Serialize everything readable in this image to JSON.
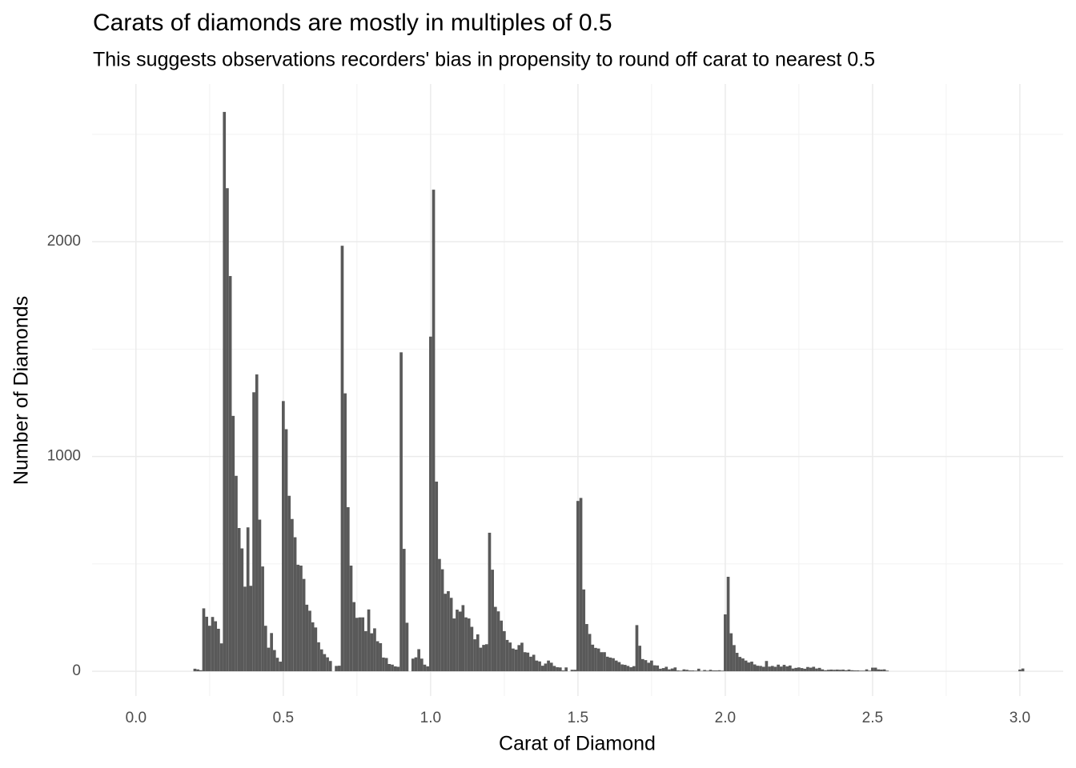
{
  "chart_data": {
    "type": "histogram",
    "title": "Carats of diamonds are mostly in multiples of 0.5",
    "subtitle": "This suggests observations recorders' bias in propensity to round off carat to nearest 0.5",
    "x_label": "Carat of Diamond",
    "y_label": "Number of Diamonds",
    "color": "#595959",
    "grid": true,
    "xlim": [
      -0.149,
      3.147
    ],
    "ylim": [
      -115,
      2734
    ],
    "xticks": [
      {
        "value": 0,
        "label": "0.0"
      },
      0.5,
      {
        "value": 1,
        "label": "1.0"
      },
      1.5,
      {
        "value": 2,
        "label": "2.0"
      },
      2.5,
      {
        "value": 3,
        "label": "3.0"
      }
    ],
    "xminor_ticks": [
      0.25,
      0.75,
      1.25,
      1.75,
      2.25,
      2.75
    ],
    "yticks": [
      0,
      1000,
      2000
    ],
    "yminor_ticks": [
      500,
      1500,
      2500
    ],
    "bins": [
      0.195,
      0.205,
      0.215,
      0.225,
      0.235,
      0.245,
      0.255,
      0.265,
      0.275,
      0.285,
      0.295,
      0.305,
      0.315,
      0.325,
      0.335,
      0.345,
      0.355,
      0.365,
      0.375,
      0.385,
      0.395,
      0.405,
      0.415,
      0.425,
      0.435,
      0.445,
      0.455,
      0.465,
      0.475,
      0.485,
      0.495,
      0.505,
      0.515,
      0.525,
      0.535,
      0.545,
      0.555,
      0.565,
      0.575,
      0.585,
      0.595,
      0.605,
      0.615,
      0.625,
      0.635,
      0.645,
      0.655,
      0.665,
      0.675,
      0.685,
      0.695,
      0.705,
      0.715,
      0.725,
      0.735,
      0.745,
      0.755,
      0.765,
      0.775,
      0.785,
      0.795,
      0.805,
      0.815,
      0.825,
      0.835,
      0.845,
      0.855,
      0.865,
      0.875,
      0.885,
      0.895,
      0.905,
      0.915,
      0.925,
      0.935,
      0.945,
      0.955,
      0.965,
      0.975,
      0.985,
      0.995,
      1.005,
      1.015,
      1.025,
      1.035,
      1.045,
      1.055,
      1.065,
      1.075,
      1.085,
      1.095,
      1.105,
      1.115,
      1.125,
      1.135,
      1.145,
      1.155,
      1.165,
      1.175,
      1.185,
      1.195,
      1.205,
      1.215,
      1.225,
      1.235,
      1.245,
      1.255,
      1.265,
      1.275,
      1.285,
      1.295,
      1.305,
      1.315,
      1.325,
      1.335,
      1.345,
      1.355,
      1.365,
      1.375,
      1.385,
      1.395,
      1.405,
      1.415,
      1.425,
      1.435,
      1.445,
      1.455,
      1.465,
      1.475,
      1.485,
      1.495,
      1.505,
      1.515,
      1.525,
      1.535,
      1.545,
      1.555,
      1.565,
      1.575,
      1.585,
      1.595,
      1.605,
      1.615,
      1.625,
      1.635,
      1.645,
      1.655,
      1.665,
      1.675,
      1.685,
      1.695,
      1.705,
      1.715,
      1.725,
      1.735,
      1.745,
      1.755,
      1.765,
      1.775,
      1.785,
      1.795,
      1.805,
      1.815,
      1.825,
      1.835,
      1.845,
      1.855,
      1.865,
      1.875,
      1.885,
      1.895,
      1.905,
      1.915,
      1.925,
      1.935,
      1.945,
      1.955,
      1.965,
      1.975,
      1.985,
      1.995,
      2.005,
      2.015,
      2.025,
      2.035,
      2.045,
      2.055,
      2.065,
      2.075,
      2.085,
      2.095,
      2.105,
      2.115,
      2.125,
      2.135,
      2.145,
      2.155,
      2.165,
      2.175,
      2.185,
      2.195,
      2.205,
      2.215,
      2.225,
      2.235,
      2.245,
      2.255,
      2.265,
      2.275,
      2.285,
      2.295,
      2.305,
      2.315,
      2.325,
      2.335,
      2.345,
      2.355,
      2.365,
      2.375,
      2.385,
      2.395,
      2.405,
      2.415,
      2.425,
      2.435,
      2.445,
      2.455,
      2.465,
      2.475,
      2.485,
      2.495,
      2.505,
      2.515,
      2.525,
      2.535,
      2.545,
      2.555,
      2.565,
      2.575,
      2.585,
      2.595,
      2.605,
      2.615,
      2.625,
      2.635,
      2.645,
      2.655,
      2.665,
      2.675,
      2.685,
      2.695,
      2.705,
      2.715,
      2.725,
      2.735,
      2.745,
      2.755,
      2.765,
      2.775,
      2.785,
      2.795,
      2.805,
      2.815,
      2.825,
      2.835,
      2.845,
      2.855,
      2.865,
      2.875,
      2.885,
      2.895,
      2.905,
      2.915,
      2.925,
      2.935,
      2.945,
      2.955,
      2.965,
      2.975,
      2.985,
      2.995,
      3.005,
      3.015
    ],
    "values": [
      12,
      9,
      5,
      293,
      254,
      212,
      253,
      233,
      198,
      130,
      2604,
      2249,
      1840,
      1189,
      910,
      667,
      572,
      394,
      670,
      398,
      1299,
      1382,
      706,
      488,
      212,
      110,
      178,
      99,
      63,
      45,
      1258,
      1127,
      817,
      709,
      624,
      496,
      492,
      430,
      310,
      282,
      228,
      204,
      135,
      102,
      80,
      65,
      48,
      0,
      25,
      26,
      1981,
      1294,
      764,
      492,
      322,
      249,
      251,
      251,
      187,
      288,
      177,
      200,
      140,
      131,
      64,
      62,
      34,
      31,
      23,
      21,
      1485,
      570,
      226,
      0,
      59,
      65,
      103,
      59,
      31,
      23,
      1558,
      2242,
      883,
      523,
      475,
      361,
      373,
      342,
      246,
      287,
      278,
      308,
      251,
      246,
      207,
      149,
      172,
      110,
      123,
      126,
      645,
      473,
      300,
      279,
      236,
      187,
      146,
      134,
      106,
      101,
      122,
      133,
      89,
      87,
      68,
      77,
      50,
      46,
      26,
      36,
      50,
      40,
      25,
      19,
      18,
      4,
      18,
      0,
      7,
      7,
      793,
      807,
      381,
      220,
      174,
      124,
      109,
      106,
      89,
      89,
      68,
      64,
      61,
      50,
      43,
      32,
      30,
      25,
      19,
      24,
      215,
      119,
      57,
      52,
      40,
      50,
      28,
      27,
      12,
      15,
      21,
      9,
      13,
      18,
      4,
      3,
      9,
      7,
      4,
      4,
      3,
      12,
      2,
      6,
      3,
      7,
      4,
      4,
      5,
      3,
      265,
      440,
      177,
      122,
      86,
      67,
      60,
      50,
      41,
      45,
      32,
      26,
      25,
      21,
      48,
      22,
      25,
      21,
      31,
      22,
      30,
      23,
      27,
      13,
      16,
      18,
      15,
      12,
      20,
      17,
      21,
      13,
      16,
      9,
      5,
      7,
      8,
      7,
      8,
      7,
      8,
      5,
      8,
      5,
      4,
      4,
      3,
      3,
      9,
      3,
      17,
      17,
      9,
      8,
      9,
      3,
      0,
      0,
      0,
      0,
      0,
      0,
      0,
      0,
      0,
      0,
      0,
      0,
      0,
      0,
      0,
      0,
      0,
      0,
      0,
      0,
      0,
      0,
      0,
      0,
      0,
      0,
      0,
      0,
      0,
      0,
      0,
      0,
      0,
      0,
      0,
      0,
      0,
      0,
      0,
      0,
      0,
      0,
      0,
      0,
      8,
      13
    ]
  }
}
